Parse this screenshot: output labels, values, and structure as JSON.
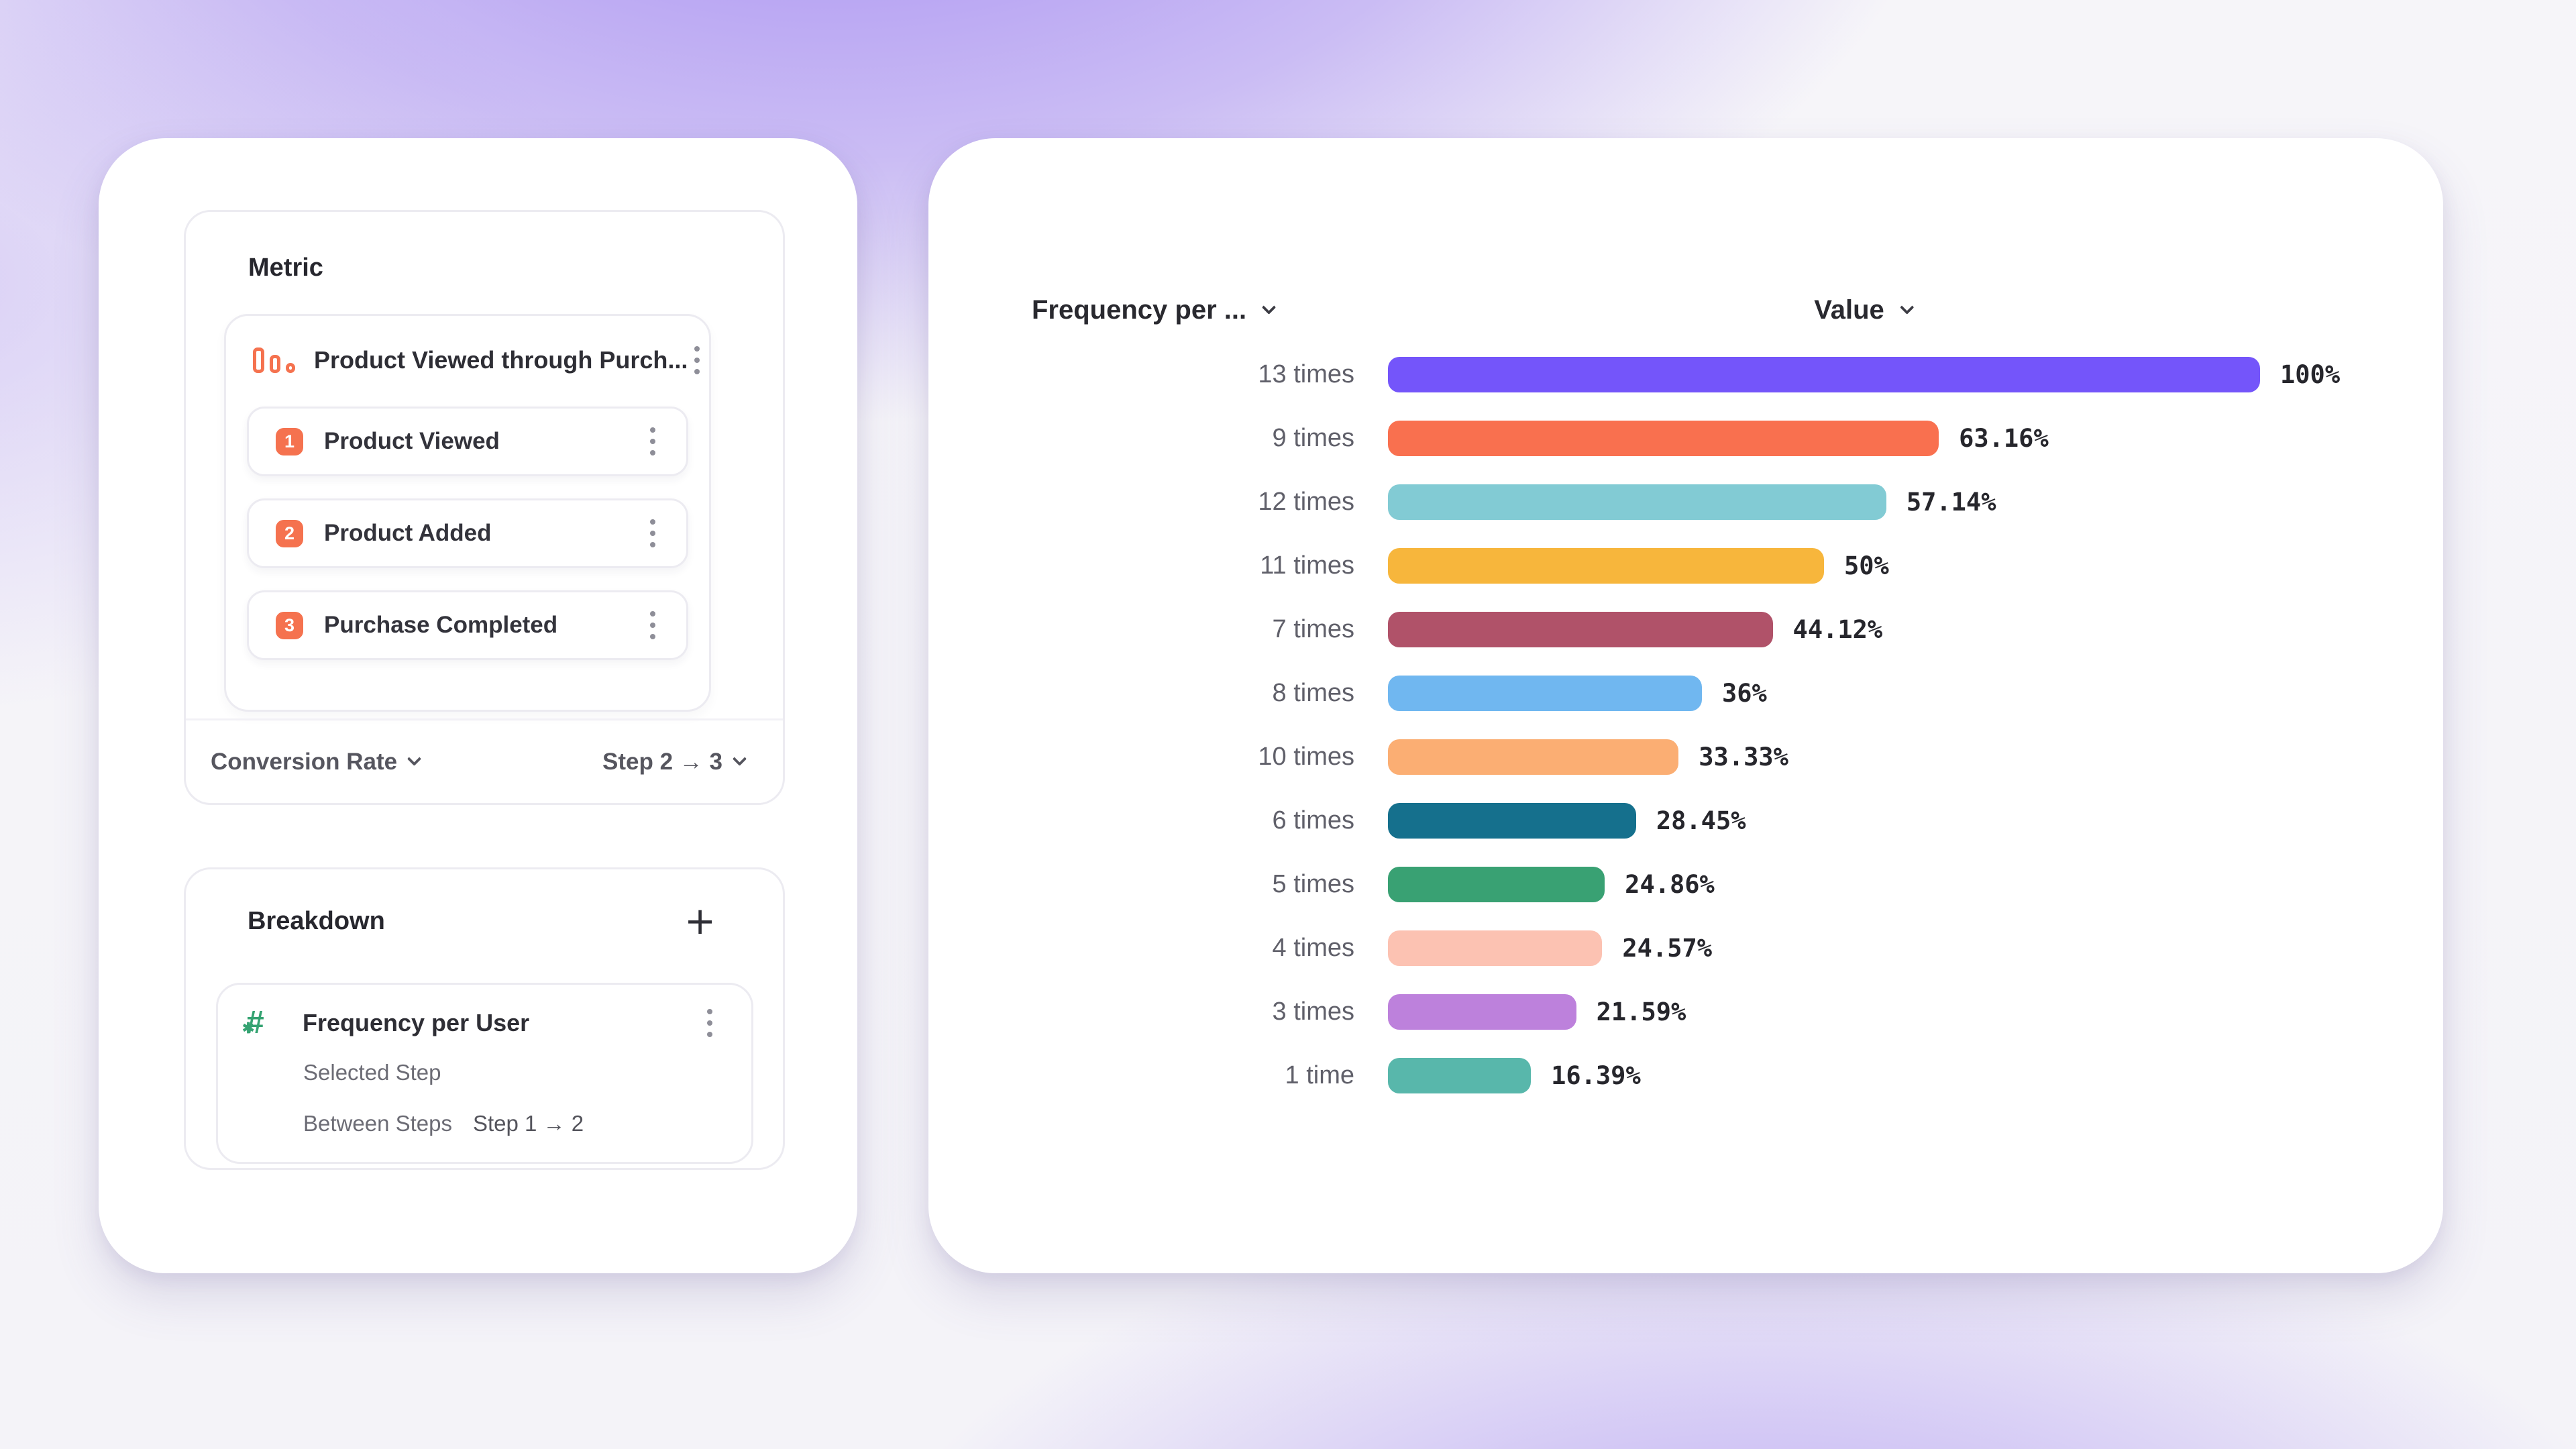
{
  "left_card": {
    "metric_panel": {
      "title": "Metric",
      "funnel": {
        "name": "Product Viewed through Purch...",
        "icon": "funnel-bars-icon",
        "icon_color": "#F5724F",
        "steps": [
          {
            "number": "1",
            "label": "Product Viewed"
          },
          {
            "number": "2",
            "label": "Product Added"
          },
          {
            "number": "3",
            "label": "Purchase Completed"
          }
        ],
        "step_badge_color": "#F5724F"
      },
      "footer": {
        "measure": "Conversion Rate",
        "steps": "Step 2 → 3"
      }
    },
    "breakdown_panel": {
      "title": "Breakdown",
      "add_button": "+",
      "item": {
        "icon": "hash-icon",
        "icon_color": "#35A372",
        "name": "Frequency per User",
        "selected_step": "Selected Step",
        "between_steps": "Between Steps",
        "between_steps_value": "Step 1 → 2"
      }
    }
  },
  "right_card": {
    "headers": {
      "category": "Frequency per ...",
      "value": "Value"
    }
  },
  "chart_data": {
    "type": "bar",
    "orientation": "horizontal",
    "title": "",
    "xlabel": "",
    "ylabel": "",
    "xlim": [
      0,
      100
    ],
    "grid": false,
    "legend": false,
    "categories": [
      "13 times",
      "9 times",
      "12 times",
      "11 times",
      "7 times",
      "8 times",
      "10 times",
      "6 times",
      "5 times",
      "4 times",
      "3 times",
      "1 time"
    ],
    "values": [
      100,
      63.16,
      57.14,
      50,
      44.12,
      36,
      33.33,
      28.45,
      24.86,
      24.57,
      21.59,
      16.39
    ],
    "value_labels": [
      "100%",
      "63.16%",
      "57.14%",
      "50%",
      "44.12%",
      "36%",
      "33.33%",
      "28.45%",
      "24.86%",
      "24.57%",
      "21.59%",
      "16.39%"
    ],
    "bar_colors": [
      "#7455FA",
      "#F9704F",
      "#82CBD4",
      "#F7B63C",
      "#B05269",
      "#70B7F0",
      "#FBAE73",
      "#15708D",
      "#39A173",
      "#FCC2B2",
      "#BD81DC",
      "#58B7AB"
    ]
  }
}
